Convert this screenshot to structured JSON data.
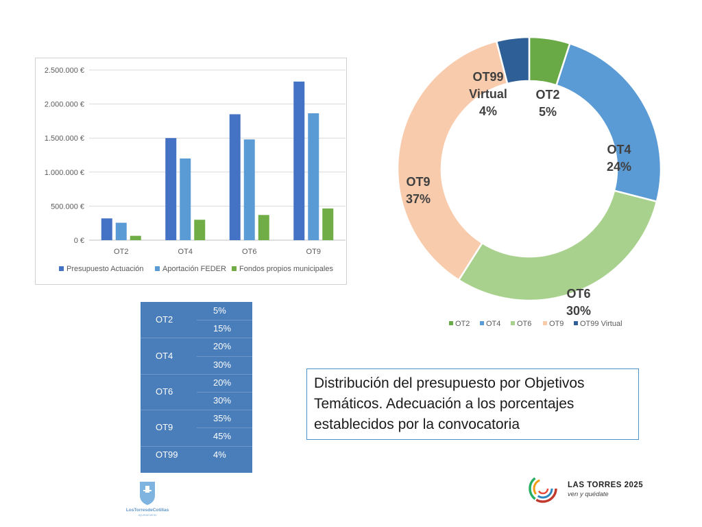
{
  "bar_chart": {
    "legend": [
      "Presupuesto Actuación",
      "Aportación FEDER",
      "Fondos propios municipales"
    ],
    "colors": [
      "#4472c4",
      "#5b9bd5",
      "#70ad47"
    ]
  },
  "donut_chart": {
    "labels": [
      "OT2\n5%",
      "OT4\n24%",
      "OT6\n30%",
      "OT9\n37%",
      "OT99\nVirtual\n4%"
    ],
    "legend": [
      "OT2",
      "OT4",
      "OT6",
      "OT9",
      "OT99 Virtual"
    ],
    "colors": [
      "#6aaa46",
      "#5b9bd5",
      "#a9d18e",
      "#f8cbad",
      "#2e5f96"
    ]
  },
  "chart_data": [
    {
      "type": "bar",
      "categories": [
        "OT2",
        "OT4",
        "OT6",
        "OT9"
      ],
      "series": [
        {
          "name": "Presupuesto Actuación",
          "values": [
            320000,
            1500000,
            1850000,
            2330000
          ]
        },
        {
          "name": "Aportación FEDER",
          "values": [
            256000,
            1200000,
            1480000,
            1864000
          ]
        },
        {
          "name": "Fondos propios municipales",
          "values": [
            64000,
            300000,
            370000,
            466000
          ]
        }
      ],
      "yticks": [
        "0 €",
        "500.000 €",
        "1.000.000 €",
        "1.500.000 €",
        "2.000.000 €",
        "2.500.000 €"
      ],
      "ylim": [
        0,
        2500000
      ],
      "grid": true,
      "legend_position": "bottom"
    },
    {
      "type": "pie",
      "categories": [
        "OT2",
        "OT4",
        "OT6",
        "OT9",
        "OT99 Virtual"
      ],
      "values": [
        5,
        24,
        30,
        37,
        4
      ],
      "legend_position": "bottom"
    }
  ],
  "pct_table": {
    "rows": [
      {
        "label": "OT2",
        "values": [
          "5%",
          "15%"
        ]
      },
      {
        "label": "OT4",
        "values": [
          "20%",
          "30%"
        ]
      },
      {
        "label": "OT6",
        "values": [
          "20%",
          "30%"
        ]
      },
      {
        "label": "OT9",
        "values": [
          "35%",
          "45%"
        ]
      },
      {
        "label": "OT99",
        "values": [
          "4%"
        ]
      }
    ]
  },
  "caption": "Distribución del presupuesto por Objetivos Temáticos. Adecuación a los porcentajes establecidos por la convocatoria",
  "logo_left": {
    "text": "LosTorresdeCotillas",
    "sub": "ayuntamiento"
  },
  "logo_right": {
    "title": "LAS TORRES 2025",
    "subtitle": "ven y quédate"
  }
}
